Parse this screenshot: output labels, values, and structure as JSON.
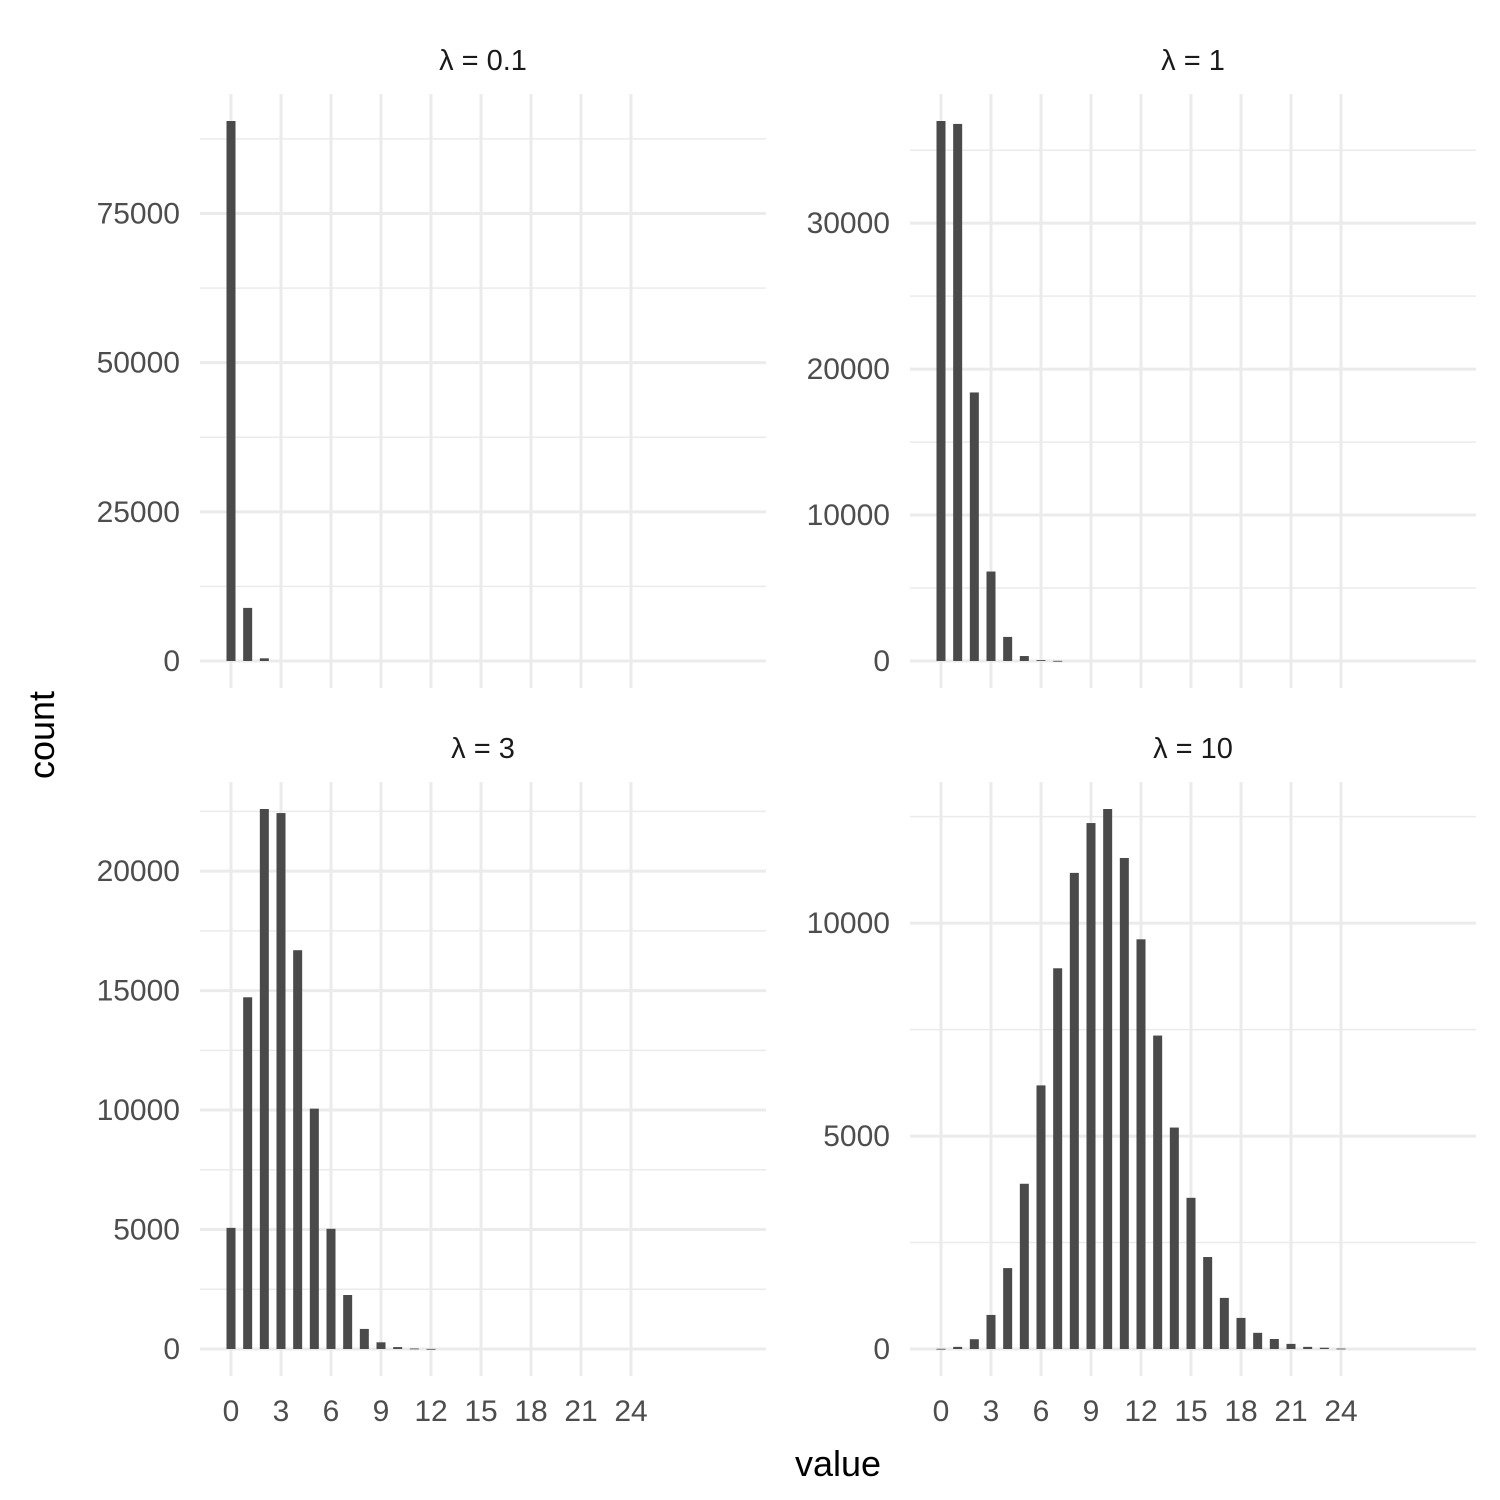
{
  "chart_data": {
    "type": "bar",
    "xlabel": "value",
    "ylabel": "count",
    "grid": true,
    "x_ticks": [
      0,
      3,
      6,
      9,
      12,
      15,
      18,
      21,
      24
    ],
    "xlim": [
      -1.86,
      32.1
    ],
    "bar_color": "#4a4a4a",
    "grid_color": "#ebebeb",
    "panels": [
      {
        "title": "λ = 0.1",
        "y_ticks": [
          0,
          25000,
          50000,
          75000
        ],
        "x": [
          0,
          1,
          2
        ],
        "values": [
          90500,
          8900,
          450
        ]
      },
      {
        "title": "λ = 1",
        "y_ticks": [
          0,
          10000,
          20000,
          30000
        ],
        "x": [
          0,
          1,
          2,
          3,
          4,
          5,
          6,
          7
        ],
        "values": [
          37000,
          36800,
          18400,
          6130,
          1650,
          340,
          60,
          10
        ]
      },
      {
        "title": "λ = 3",
        "y_ticks": [
          0,
          5000,
          10000,
          15000,
          20000
        ],
        "x": [
          0,
          1,
          2,
          3,
          4,
          5,
          6,
          7,
          8,
          9,
          10,
          11,
          12
        ],
        "values": [
          5070,
          14720,
          22600,
          22430,
          16690,
          10060,
          5030,
          2260,
          840,
          280,
          80,
          20,
          5
        ]
      },
      {
        "title": "λ = 10",
        "y_ticks": [
          0,
          5000,
          10000
        ],
        "x": [
          0,
          1,
          2,
          3,
          4,
          5,
          6,
          7,
          8,
          9,
          10,
          11,
          12,
          13,
          14,
          15,
          16,
          17,
          18,
          19,
          20,
          21,
          22,
          23,
          24
        ],
        "values": [
          5,
          50,
          230,
          800,
          1900,
          3880,
          6190,
          8940,
          11180,
          12350,
          12680,
          11530,
          9620,
          7360,
          5200,
          3550,
          2160,
          1200,
          730,
          380,
          235,
          120,
          50,
          30,
          10
        ]
      }
    ]
  }
}
